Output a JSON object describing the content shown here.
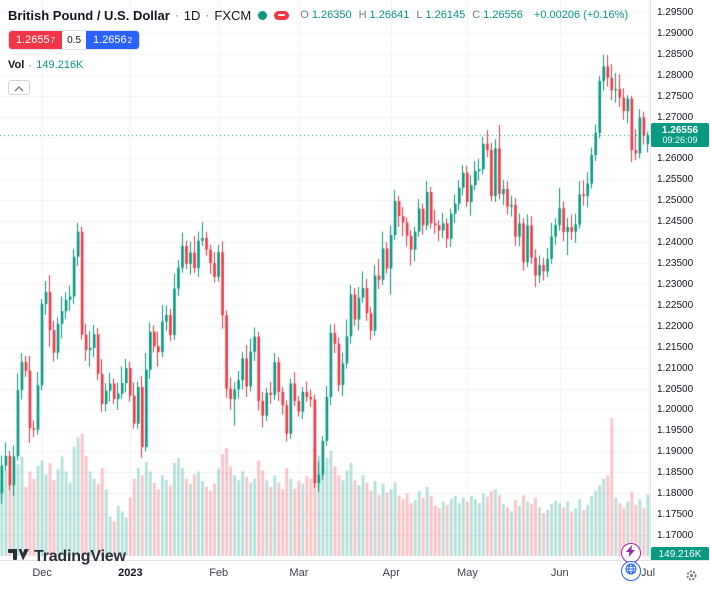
{
  "legend": {
    "symbol": "British Pound / U.S. Dollar",
    "sep": "·",
    "interval": "1D",
    "exchange": "FXCM",
    "ohlc": {
      "o_label": "O",
      "o": "1.26350",
      "h_label": "H",
      "h": "1.26641",
      "l_label": "L",
      "l": "1.26145",
      "c_label": "C",
      "c": "1.26556",
      "change": "+0.00206 (+0.16%)"
    },
    "sell": {
      "price": "1.2655",
      "sup": "7"
    },
    "spread": "0.5",
    "buy": {
      "price": "1.2656",
      "sup": "2"
    },
    "vol_label": "Vol",
    "vol_value": "149.216K"
  },
  "price_label": {
    "price": "1.26556",
    "countdown": "09:26:09"
  },
  "volume_label": "149.216K",
  "footer": {
    "logo_text": "TradingView"
  },
  "colors": {
    "up": "#089981",
    "down": "#f23645",
    "volume_up": "rgba(8,153,129,0.3)",
    "volume_down": "rgba(242,54,69,0.3)",
    "grid": "#f0f3fa",
    "buy_button": "#2962ff",
    "sell_button": "#f23645",
    "lightning": "#9c27b0",
    "globe": "#2962ff"
  },
  "price_axis": {
    "ticks": [
      "1.29500",
      "1.29000",
      "1.28500",
      "1.28000",
      "1.27500",
      "1.27000",
      "1.26500",
      "1.26000",
      "1.25500",
      "1.25000",
      "1.24500",
      "1.24000",
      "1.23500",
      "1.23000",
      "1.22500",
      "1.22000",
      "1.21500",
      "1.21000",
      "1.20500",
      "1.20000",
      "1.19500",
      "1.19000",
      "1.18500",
      "1.18000",
      "1.17500",
      "1.17000"
    ]
  },
  "time_axis": {
    "ticks": [
      {
        "label": "Dec",
        "index": 10
      },
      {
        "label": "2023",
        "index": 32,
        "bold": true
      },
      {
        "label": "Feb",
        "index": 54
      },
      {
        "label": "Mar",
        "index": 74
      },
      {
        "label": "Apr",
        "index": 97
      },
      {
        "label": "May",
        "index": 116
      },
      {
        "label": "Jun",
        "index": 139
      },
      {
        "label": "Jul",
        "index": 161
      }
    ]
  },
  "chart_data": {
    "type": "candlestick",
    "title": "British Pound / U.S. Dollar · 1D · FXCM",
    "symbol": "GBP/USD",
    "interval": "1D",
    "exchange": "FXCM",
    "y_range": [
      1.17,
      1.295
    ],
    "price_line": 1.26556,
    "last_ohlc": {
      "open": 1.2635,
      "high": 1.26641,
      "low": 1.26145,
      "close": 1.26556,
      "change": 0.00206,
      "change_pct": 0.16
    },
    "last_volume": "149.216K",
    "volume_scale_max": 340,
    "candles": [
      [
        1.18,
        1.189,
        1.1775,
        1.1866
      ],
      [
        1.1866,
        1.1921,
        1.1854,
        1.1889
      ],
      [
        1.1889,
        1.1901,
        1.1807,
        1.1819
      ],
      [
        1.1819,
        1.1914,
        1.1793,
        1.1888
      ],
      [
        1.1888,
        1.2086,
        1.1878,
        1.2046
      ],
      [
        1.2046,
        1.2135,
        1.2024,
        1.2113
      ],
      [
        1.2113,
        1.2128,
        1.2078,
        1.2093
      ],
      [
        1.2093,
        1.2128,
        1.192,
        1.1955
      ],
      [
        1.1955,
        1.1973,
        1.1934,
        1.1952
      ],
      [
        1.1952,
        1.209,
        1.194,
        1.2058
      ],
      [
        1.2058,
        1.2264,
        1.2046,
        1.2252
      ],
      [
        1.2252,
        1.2307,
        1.2226,
        1.2281
      ],
      [
        1.2281,
        1.2321,
        1.215,
        1.219
      ],
      [
        1.219,
        1.2212,
        1.2114,
        1.2136
      ],
      [
        1.2136,
        1.222,
        1.2121,
        1.2205
      ],
      [
        1.2205,
        1.227,
        1.217,
        1.2235
      ],
      [
        1.2235,
        1.228,
        1.2217,
        1.2262
      ],
      [
        1.2262,
        1.2296,
        1.2236,
        1.227
      ],
      [
        1.227,
        1.2383,
        1.2252,
        1.2365
      ],
      [
        1.2365,
        1.2446,
        1.2343,
        1.2425
      ],
      [
        1.2425,
        1.2437,
        1.2167,
        1.2179
      ],
      [
        1.2179,
        1.2205,
        1.2116,
        1.2142
      ],
      [
        1.2142,
        1.2187,
        1.2102,
        1.2147
      ],
      [
        1.2147,
        1.2202,
        1.2125,
        1.218
      ],
      [
        1.218,
        1.2195,
        1.207,
        1.2085
      ],
      [
        1.2085,
        1.212,
        1.1993,
        1.2013
      ],
      [
        1.2013,
        1.2063,
        1.1995,
        1.2045
      ],
      [
        1.2045,
        1.2088,
        1.2019,
        1.2062
      ],
      [
        1.2062,
        1.2074,
        1.2013,
        1.2025
      ],
      [
        1.2025,
        1.2064,
        1.1999,
        1.2038
      ],
      [
        1.2038,
        1.2103,
        1.2026,
        1.2063
      ],
      [
        1.2063,
        1.2121,
        1.2041,
        1.2099
      ],
      [
        1.2099,
        1.2114,
        1.2018,
        1.2033
      ],
      [
        1.2033,
        1.2065,
        1.1954,
        1.1966
      ],
      [
        1.1966,
        1.2066,
        1.1954,
        1.2054
      ],
      [
        1.2054,
        1.208,
        1.1884,
        1.191
      ],
      [
        1.191,
        1.2135,
        1.19,
        1.2095
      ],
      [
        1.2095,
        1.2208,
        1.2073,
        1.2186
      ],
      [
        1.2186,
        1.2201,
        1.2136,
        1.2151
      ],
      [
        1.2151,
        1.2186,
        1.2102,
        1.2137
      ],
      [
        1.2137,
        1.225,
        1.2125,
        1.221
      ],
      [
        1.221,
        1.2248,
        1.2188,
        1.2226
      ],
      [
        1.2226,
        1.2241,
        1.2163,
        1.2178
      ],
      [
        1.2178,
        1.2324,
        1.2166,
        1.2289
      ],
      [
        1.2289,
        1.2357,
        1.2271,
        1.2339
      ],
      [
        1.2339,
        1.2423,
        1.2327,
        1.2391
      ],
      [
        1.2391,
        1.2403,
        1.2336,
        1.2348
      ],
      [
        1.2348,
        1.2401,
        1.2322,
        1.2375
      ],
      [
        1.2375,
        1.2415,
        1.2326,
        1.2338
      ],
      [
        1.2338,
        1.2425,
        1.2316,
        1.2403
      ],
      [
        1.2403,
        1.2448,
        1.2391,
        1.241
      ],
      [
        1.241,
        1.2425,
        1.2367,
        1.2382
      ],
      [
        1.2382,
        1.2394,
        1.2324,
        1.235
      ],
      [
        1.235,
        1.2376,
        1.2303,
        1.2317
      ],
      [
        1.2317,
        1.2394,
        1.2305,
        1.2376
      ],
      [
        1.2376,
        1.2402,
        1.2193,
        1.2225
      ],
      [
        1.2225,
        1.2237,
        1.2028,
        1.205
      ],
      [
        1.205,
        1.2076,
        1.1999,
        1.2025
      ],
      [
        1.2025,
        1.2065,
        1.1961,
        1.2048
      ],
      [
        1.2048,
        1.2092,
        1.2026,
        1.207
      ],
      [
        1.207,
        1.2137,
        1.2048,
        1.2122
      ],
      [
        1.2122,
        1.2154,
        1.203,
        1.2055
      ],
      [
        1.2055,
        1.217,
        1.2043,
        1.2138
      ],
      [
        1.2138,
        1.2196,
        1.2116,
        1.2174
      ],
      [
        1.2174,
        1.2186,
        1.1998,
        1.202
      ],
      [
        1.202,
        1.2042,
        1.1957,
        1.1985
      ],
      [
        1.1985,
        1.2052,
        1.1973,
        1.204
      ],
      [
        1.204,
        1.2066,
        1.2013,
        1.2035
      ],
      [
        1.2035,
        1.2135,
        1.2023,
        1.2113
      ],
      [
        1.2113,
        1.2125,
        1.202,
        1.2042
      ],
      [
        1.2042,
        1.2054,
        1.1988,
        1.201
      ],
      [
        1.201,
        1.2022,
        1.1923,
        1.1942
      ],
      [
        1.1942,
        1.2074,
        1.193,
        1.2062
      ],
      [
        1.2062,
        1.2089,
        1.2008,
        1.202
      ],
      [
        1.202,
        1.2032,
        1.1983,
        1.1995
      ],
      [
        1.1995,
        1.2054,
        1.1977,
        1.2042
      ],
      [
        1.2042,
        1.2067,
        1.2018,
        1.203
      ],
      [
        1.203,
        1.2048,
        1.2006,
        1.2024
      ],
      [
        1.2024,
        1.2036,
        1.1812,
        1.1824
      ],
      [
        1.1824,
        1.1876,
        1.1803,
        1.1844
      ],
      [
        1.1844,
        1.1937,
        1.1832,
        1.1925
      ],
      [
        1.1925,
        1.2056,
        1.1913,
        1.203
      ],
      [
        1.203,
        1.2203,
        1.201,
        1.2183
      ],
      [
        1.2183,
        1.2205,
        1.2135,
        1.2157
      ],
      [
        1.2157,
        1.2172,
        1.2043,
        1.2058
      ],
      [
        1.2058,
        1.2136,
        1.2032,
        1.211
      ],
      [
        1.211,
        1.2215,
        1.2098,
        1.2175
      ],
      [
        1.2175,
        1.2297,
        1.2157,
        1.2275
      ],
      [
        1.2275,
        1.229,
        1.22,
        1.2215
      ],
      [
        1.2215,
        1.2293,
        1.2189,
        1.2267
      ],
      [
        1.2267,
        1.233,
        1.2255,
        1.229
      ],
      [
        1.229,
        1.2312,
        1.2212,
        1.223
      ],
      [
        1.223,
        1.2245,
        1.2166,
        1.2188
      ],
      [
        1.2188,
        1.2345,
        1.2176,
        1.232
      ],
      [
        1.232,
        1.236,
        1.2288,
        1.231
      ],
      [
        1.231,
        1.2425,
        1.2298,
        1.2385
      ],
      [
        1.2385,
        1.24,
        1.2325,
        1.2337
      ],
      [
        1.2337,
        1.244,
        1.2275,
        1.2417
      ],
      [
        1.2417,
        1.2525,
        1.2405,
        1.2498
      ],
      [
        1.2498,
        1.251,
        1.2436,
        1.2462
      ],
      [
        1.2462,
        1.2484,
        1.2414,
        1.2447
      ],
      [
        1.2447,
        1.2459,
        1.239,
        1.2415
      ],
      [
        1.2415,
        1.2428,
        1.2344,
        1.2382
      ],
      [
        1.2382,
        1.2437,
        1.2354,
        1.2425
      ],
      [
        1.2425,
        1.2503,
        1.2413,
        1.248
      ],
      [
        1.248,
        1.2492,
        1.2418,
        1.244
      ],
      [
        1.244,
        1.2546,
        1.2428,
        1.252
      ],
      [
        1.252,
        1.2532,
        1.2433,
        1.2445
      ],
      [
        1.2445,
        1.2477,
        1.242,
        1.244
      ],
      [
        1.244,
        1.2452,
        1.2402,
        1.2428
      ],
      [
        1.2428,
        1.247,
        1.241,
        1.2445
      ],
      [
        1.2445,
        1.2457,
        1.2386,
        1.2408
      ],
      [
        1.2408,
        1.248,
        1.2388,
        1.2468
      ],
      [
        1.2468,
        1.2514,
        1.2446,
        1.2492
      ],
      [
        1.2492,
        1.2548,
        1.2476,
        1.253
      ],
      [
        1.253,
        1.2584,
        1.2512,
        1.2566
      ],
      [
        1.2566,
        1.2582,
        1.2484,
        1.2496
      ],
      [
        1.2496,
        1.256,
        1.2463,
        1.2536
      ],
      [
        1.2536,
        1.2594,
        1.2524,
        1.257
      ],
      [
        1.257,
        1.2599,
        1.2547,
        1.2574
      ],
      [
        1.2574,
        1.2652,
        1.2562,
        1.2635
      ],
      [
        1.2635,
        1.2668,
        1.2603,
        1.262
      ],
      [
        1.262,
        1.2637,
        1.2498,
        1.251
      ],
      [
        1.251,
        1.2646,
        1.2496,
        1.2624
      ],
      [
        1.2624,
        1.268,
        1.2502,
        1.2515
      ],
      [
        1.2515,
        1.2549,
        1.2489,
        1.2527
      ],
      [
        1.2527,
        1.2546,
        1.2466,
        1.2485
      ],
      [
        1.2485,
        1.2511,
        1.2461,
        1.2489
      ],
      [
        1.2489,
        1.2505,
        1.2391,
        1.2413
      ],
      [
        1.2413,
        1.2469,
        1.239,
        1.2445
      ],
      [
        1.2445,
        1.2457,
        1.2332,
        1.2352
      ],
      [
        1.2352,
        1.2466,
        1.234,
        1.244
      ],
      [
        1.244,
        1.2462,
        1.2348,
        1.2363
      ],
      [
        1.2363,
        1.2383,
        1.2292,
        1.232
      ],
      [
        1.232,
        1.2368,
        1.2302,
        1.2345
      ],
      [
        1.2345,
        1.2362,
        1.2308,
        1.233
      ],
      [
        1.233,
        1.2386,
        1.2316,
        1.236
      ],
      [
        1.236,
        1.2446,
        1.2348,
        1.2413
      ],
      [
        1.2413,
        1.2457,
        1.2393,
        1.2441
      ],
      [
        1.2441,
        1.2529,
        1.2428,
        1.2481
      ],
      [
        1.2481,
        1.2497,
        1.2402,
        1.2424
      ],
      [
        1.2424,
        1.2458,
        1.2369,
        1.2436
      ],
      [
        1.2436,
        1.2466,
        1.2405,
        1.2425
      ],
      [
        1.2425,
        1.2468,
        1.2398,
        1.2442
      ],
      [
        1.2442,
        1.2546,
        1.2432,
        1.2514
      ],
      [
        1.2514,
        1.2548,
        1.2487,
        1.251
      ],
      [
        1.251,
        1.2567,
        1.2483,
        1.254
      ],
      [
        1.254,
        1.2626,
        1.2528,
        1.2608
      ],
      [
        1.2608,
        1.2681,
        1.2594,
        1.2661
      ],
      [
        1.2661,
        1.2797,
        1.2649,
        1.2785
      ],
      [
        1.2785,
        1.2848,
        1.2762,
        1.282
      ],
      [
        1.282,
        1.2847,
        1.2772,
        1.2793
      ],
      [
        1.2793,
        1.2826,
        1.2739,
        1.2763
      ],
      [
        1.2763,
        1.2804,
        1.2733,
        1.2766
      ],
      [
        1.2766,
        1.2802,
        1.2723,
        1.2745
      ],
      [
        1.2745,
        1.2768,
        1.2692,
        1.2713
      ],
      [
        1.2713,
        1.2751,
        1.2684,
        1.2743
      ],
      [
        1.2743,
        1.2749,
        1.2591,
        1.262
      ],
      [
        1.262,
        1.267,
        1.2596,
        1.2612
      ],
      [
        1.2612,
        1.2718,
        1.2601,
        1.2698
      ],
      [
        1.2698,
        1.2712,
        1.2633,
        1.2655
      ],
      [
        1.2635,
        1.26641,
        1.26145,
        1.26556
      ]
    ],
    "volumes": [
      182,
      210,
      196,
      174,
      223,
      241,
      168,
      205,
      187,
      219,
      232,
      198,
      226,
      184,
      211,
      242,
      205,
      178,
      265,
      288,
      297,
      243,
      205,
      188,
      176,
      214,
      162,
      96,
      84,
      122,
      108,
      94,
      142,
      188,
      214,
      196,
      228,
      205,
      178,
      162,
      196,
      184,
      172,
      226,
      238,
      214,
      188,
      176,
      198,
      205,
      182,
      168,
      158,
      176,
      212,
      248,
      262,
      218,
      196,
      184,
      206,
      192,
      178,
      188,
      232,
      208,
      184,
      168,
      196,
      178,
      162,
      214,
      188,
      164,
      182,
      176,
      194,
      188,
      266,
      244,
      212,
      238,
      256,
      218,
      196,
      184,
      208,
      226,
      184,
      172,
      196,
      178,
      158,
      182,
      148,
      176,
      154,
      162,
      178,
      146,
      138,
      152,
      128,
      136,
      158,
      142,
      168,
      146,
      122,
      116,
      132,
      124,
      138,
      146,
      128,
      142,
      132,
      146,
      138,
      128,
      152,
      144,
      158,
      162,
      148,
      126,
      118,
      108,
      136,
      122,
      148,
      132,
      126,
      142,
      118,
      104,
      112,
      126,
      134,
      128,
      118,
      132,
      108,
      116,
      138,
      112,
      124,
      146,
      158,
      172,
      188,
      196,
      335,
      142,
      128,
      118,
      132,
      156,
      124,
      138,
      116,
      149.216
    ]
  }
}
